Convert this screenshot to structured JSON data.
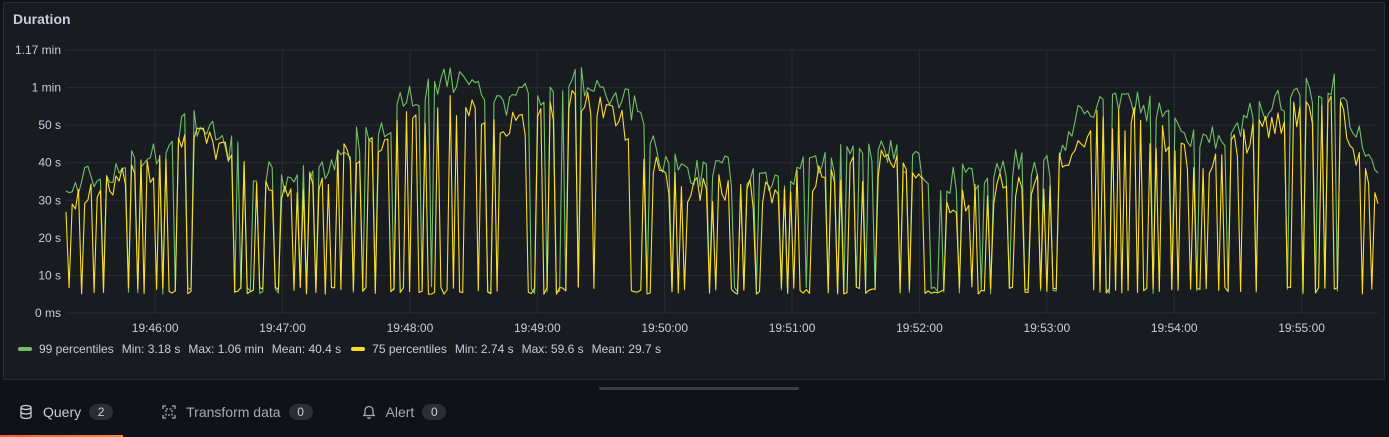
{
  "panel": {
    "title": "Duration"
  },
  "chart_data": {
    "type": "line",
    "y_ticks": [
      "0 ms",
      "10 s",
      "20 s",
      "30 s",
      "40 s",
      "50 s",
      "1 min",
      "1.17 min"
    ],
    "ylim_seconds": [
      0,
      70
    ],
    "x_ticks": [
      "19:46:00",
      "19:47:00",
      "19:48:00",
      "19:49:00",
      "19:50:00",
      "19:51:00",
      "19:52:00",
      "19:53:00",
      "19:54:00",
      "19:55:00"
    ],
    "xlim": [
      "19:45:18",
      "19:55:36"
    ],
    "grid": true,
    "legend_placement": "bottom-left",
    "series": [
      {
        "name": "99 percentiles",
        "color": "#73bf69",
        "stats": {
          "min": "Min: 3.18 s",
          "max": "Max: 1.06 min",
          "mean": "Mean: 40.4 s"
        },
        "x": [
          "19:45:18",
          "19:45:30",
          "19:45:45",
          "19:46:00",
          "19:46:15",
          "19:46:30",
          "19:46:45",
          "19:47:00",
          "19:47:15",
          "19:47:30",
          "19:47:45",
          "19:48:00",
          "19:48:15",
          "19:48:30",
          "19:48:45",
          "19:49:00",
          "19:49:15",
          "19:49:30",
          "19:49:45",
          "19:50:00",
          "19:50:15",
          "19:50:30",
          "19:50:45",
          "19:51:00",
          "19:51:15",
          "19:51:30",
          "19:51:45",
          "19:52:00",
          "19:52:15",
          "19:52:30",
          "19:52:45",
          "19:53:00",
          "19:53:15",
          "19:53:30",
          "19:53:45",
          "19:54:00",
          "19:54:15",
          "19:54:30",
          "19:54:45",
          "19:55:00",
          "19:55:15",
          "19:55:36"
        ],
        "values": [
          32,
          36,
          39,
          42,
          52,
          46,
          39,
          35,
          37,
          45,
          48,
          58,
          62,
          60,
          56,
          58,
          63,
          60,
          55,
          40,
          37,
          38,
          35,
          38,
          40,
          42,
          44,
          39,
          35,
          37,
          40,
          38,
          52,
          58,
          56,
          49,
          45,
          50,
          55,
          58,
          62,
          38
        ]
      },
      {
        "name": "75 percentiles",
        "color": "#fade2a",
        "stats": {
          "min": "Min: 2.74 s",
          "max": "Max: 59.6 s",
          "mean": "Mean: 29.7 s"
        },
        "x": [
          "19:45:18",
          "19:45:30",
          "19:45:45",
          "19:46:00",
          "19:46:15",
          "19:46:30",
          "19:46:45",
          "19:47:00",
          "19:47:15",
          "19:47:30",
          "19:47:45",
          "19:48:00",
          "19:48:15",
          "19:48:30",
          "19:48:45",
          "19:49:00",
          "19:49:15",
          "19:49:30",
          "19:49:45",
          "19:50:00",
          "19:50:15",
          "19:50:30",
          "19:50:45",
          "19:51:00",
          "19:51:15",
          "19:51:30",
          "19:51:45",
          "19:52:00",
          "19:52:15",
          "19:52:30",
          "19:52:45",
          "19:53:00",
          "19:53:15",
          "19:53:30",
          "19:53:45",
          "19:54:00",
          "19:54:15",
          "19:54:30",
          "19:54:45",
          "19:55:00",
          "19:55:15",
          "19:55:36"
        ],
        "values": [
          30,
          33,
          36,
          38,
          47,
          44,
          36,
          32,
          34,
          42,
          45,
          52,
          55,
          54,
          50,
          52,
          57,
          55,
          48,
          34,
          33,
          34,
          31,
          34,
          36,
          38,
          40,
          35,
          30,
          32,
          35,
          34,
          46,
          53,
          50,
          44,
          40,
          45,
          50,
          53,
          57,
          30
        ],
        "dips_to": 5
      }
    ]
  },
  "tabs": [
    {
      "label": "Query",
      "count": "2",
      "icon": "database-icon",
      "active": true
    },
    {
      "label": "Transform data",
      "count": "0",
      "icon": "transform-icon",
      "active": false
    },
    {
      "label": "Alert",
      "count": "0",
      "icon": "bell-icon",
      "active": false
    }
  ]
}
